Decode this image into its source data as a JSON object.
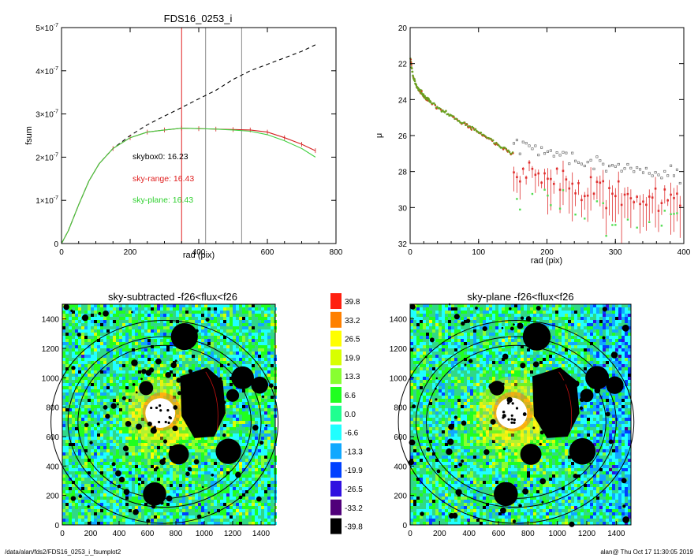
{
  "chart_data": [
    {
      "type": "line",
      "title": "FDS16_0253_i",
      "xlabel": "rad (pix)",
      "ylabel": "fsum",
      "xlim": [
        0,
        800
      ],
      "ylim": [
        0,
        5e-07
      ],
      "x_ticks": [
        "0",
        "200",
        "400",
        "600",
        "800"
      ],
      "y_ticks": [
        {
          "mant": "0",
          "exp": ""
        },
        {
          "mant": "1×10",
          "exp": "-7"
        },
        {
          "mant": "2×10",
          "exp": "-7"
        },
        {
          "mant": "3×10",
          "exp": "-7"
        },
        {
          "mant": "4×10",
          "exp": "-7"
        },
        {
          "mant": "5×10",
          "exp": "-7"
        }
      ],
      "vlines": [
        {
          "x": 350,
          "color": "#e02020"
        },
        {
          "x": 420,
          "color": "#888888"
        },
        {
          "x": 525,
          "color": "#888888"
        }
      ],
      "series": [
        {
          "style": "dashed",
          "color": "#000000",
          "x": [
            0,
            20,
            50,
            80,
            110,
            150,
            200,
            250,
            300,
            350,
            400,
            450,
            500,
            550,
            600,
            650,
            700,
            740
          ],
          "y": [
            0,
            3e-08,
            9e-08,
            1.45e-07,
            1.85e-07,
            2.2e-07,
            2.5e-07,
            2.75e-07,
            2.95e-07,
            3.15e-07,
            3.35e-07,
            3.55e-07,
            3.8e-07,
            4e-07,
            4.15e-07,
            4.3e-07,
            4.45e-07,
            4.6e-07
          ]
        },
        {
          "style": "solid",
          "color": "#d42020",
          "x": [
            0,
            20,
            50,
            80,
            110,
            150,
            200,
            250,
            300,
            350,
            400,
            450,
            500,
            550,
            600,
            650,
            700,
            740
          ],
          "y": [
            0,
            3e-08,
            9e-08,
            1.45e-07,
            1.85e-07,
            2.2e-07,
            2.45e-07,
            2.58e-07,
            2.63e-07,
            2.67e-07,
            2.66e-07,
            2.65e-07,
            2.64e-07,
            2.63e-07,
            2.58e-07,
            2.45e-07,
            2.3e-07,
            2.15e-07
          ]
        },
        {
          "style": "solid",
          "color": "#40d040",
          "x": [
            0,
            20,
            50,
            80,
            110,
            150,
            200,
            250,
            300,
            350,
            400,
            450,
            500,
            550,
            600,
            650,
            700,
            740
          ],
          "y": [
            0,
            3e-08,
            9e-08,
            1.45e-07,
            1.85e-07,
            2.2e-07,
            2.45e-07,
            2.58e-07,
            2.63e-07,
            2.67e-07,
            2.66e-07,
            2.65e-07,
            2.63e-07,
            2.6e-07,
            2.52e-07,
            2.38e-07,
            2.2e-07,
            2e-07
          ]
        }
      ],
      "annotations": [
        {
          "text": "skybox0: 16.23",
          "color": "#000000"
        },
        {
          "text": "sky-range: 16.43",
          "color": "#e02020"
        },
        {
          "text": "sky-plane: 16.43",
          "color": "#30d030"
        }
      ]
    },
    {
      "type": "scatter",
      "xlabel": "rad (pix)",
      "ylabel": "μ",
      "xlim": [
        0,
        400
      ],
      "ylim": [
        32,
        20
      ],
      "x_ticks": [
        "0",
        "100",
        "200",
        "300",
        "400"
      ],
      "y_ticks": [
        "20",
        "22",
        "24",
        "26",
        "28",
        "30",
        "32"
      ],
      "trend": {
        "x": [
          0,
          2,
          5,
          10,
          20,
          50,
          100,
          150,
          200,
          250,
          300,
          350,
          390
        ],
        "y": [
          21.5,
          22.2,
          22.8,
          23.3,
          23.8,
          24.7,
          25.8,
          27.0,
          27.6,
          28.0,
          28.3,
          28.6,
          28.8
        ]
      }
    },
    {
      "type": "heatmap",
      "title": "sky-subtracted -f26<flux<f26",
      "xlim": [
        0,
        1500
      ],
      "ylim": [
        0,
        1500
      ],
      "x_ticks": [
        "0",
        "200",
        "400",
        "600",
        "800",
        "1000",
        "1200",
        "1400"
      ],
      "y_ticks": [
        "0",
        "200",
        "400",
        "600",
        "800",
        "1000",
        "1200",
        "1400"
      ]
    },
    {
      "type": "heatmap",
      "title": "sky-plane -f26<flux<f26",
      "xlim": [
        0,
        1500
      ],
      "ylim": [
        0,
        1500
      ],
      "x_ticks": [
        "0",
        "200",
        "400",
        "600",
        "800",
        "1000",
        "1200",
        "1400"
      ],
      "y_ticks": [
        "0",
        "200",
        "400",
        "600",
        "800",
        "1000",
        "1200",
        "1400"
      ]
    }
  ],
  "colorbar": {
    "labels": [
      "39.8",
      "33.2",
      "26.5",
      "19.9",
      "13.3",
      "6.6",
      "0.0",
      "-6.6",
      "-13.3",
      "-19.9",
      "-26.5",
      "-33.2",
      "-39.8"
    ],
    "colors": [
      "#ff2010",
      "#ff8000",
      "#ffff00",
      "#d8ff00",
      "#88ff30",
      "#20ff20",
      "#20ff90",
      "#20ffff",
      "#10a8ff",
      "#0040ff",
      "#3010e0",
      "#50007a",
      "#000000"
    ]
  },
  "footer": {
    "left": "/data/alan/fds2/FDS16_0253_i_fsumplot2",
    "right": "alan@  Thu Oct 17 11:30:05 2019"
  }
}
